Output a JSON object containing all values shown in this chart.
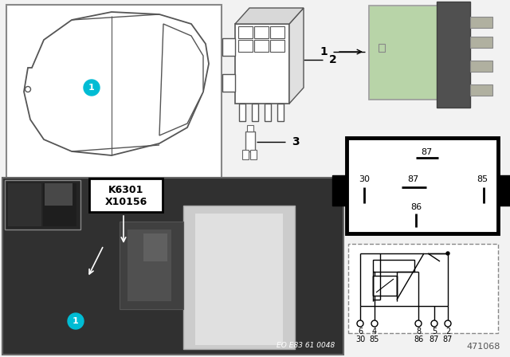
{
  "bg_color": "#f2f2f2",
  "relay_green": "#b8d4a8",
  "relay_dark": "#606060",
  "relay_pin_color": "#a0a0a0",
  "diagram_number": "471068",
  "eo_label": "EO E83 61 0048",
  "pin_labels_top": [
    "6",
    "4",
    "8",
    "5",
    "2"
  ],
  "pin_labels_bot": [
    "30",
    "85",
    "86",
    "87",
    "87"
  ],
  "car_circle_color": "#00bcd4",
  "photo_bg": "#303030",
  "label_k": "K6301",
  "label_x": "X10156",
  "item2": "2",
  "item3": "3",
  "item1": "1",
  "white": "#ffffff",
  "black": "#000000",
  "dark_border": "#444444",
  "gray_line": "#888888"
}
